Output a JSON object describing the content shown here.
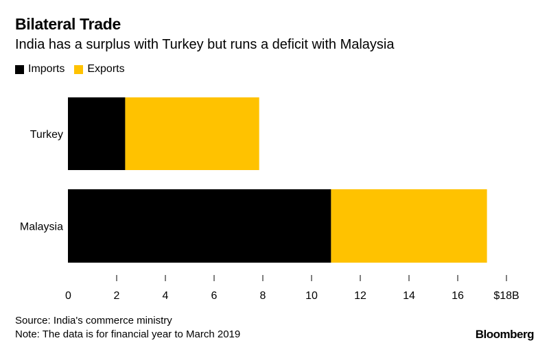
{
  "title": "Bilateral Trade",
  "subtitle": "India has a surplus with Turkey but runs a deficit with Malaysia",
  "legend": [
    {
      "label": "Imports",
      "color": "#000000"
    },
    {
      "label": "Exports",
      "color": "#ffc200"
    }
  ],
  "chart_data": {
    "type": "bar",
    "orientation": "horizontal",
    "stacked": true,
    "categories": [
      "Turkey",
      "Malaysia"
    ],
    "series": [
      {
        "name": "Imports",
        "color": "#000000",
        "values": [
          2.35,
          10.8
        ]
      },
      {
        "name": "Exports",
        "color": "#ffc200",
        "values": [
          5.5,
          6.4
        ]
      }
    ],
    "xlim": [
      0,
      18
    ],
    "ticks": [
      0,
      2,
      4,
      6,
      8,
      10,
      12,
      14,
      16,
      18
    ],
    "tick_labels": [
      "0",
      "2",
      "4",
      "6",
      "8",
      "10",
      "12",
      "14",
      "16",
      "$18B"
    ],
    "grid": false,
    "legend_position": "top-left"
  },
  "footer": {
    "source": "Source: India's commerce ministry",
    "note": "Note: The data is for financial year to March 2019"
  },
  "brand": "Bloomberg"
}
